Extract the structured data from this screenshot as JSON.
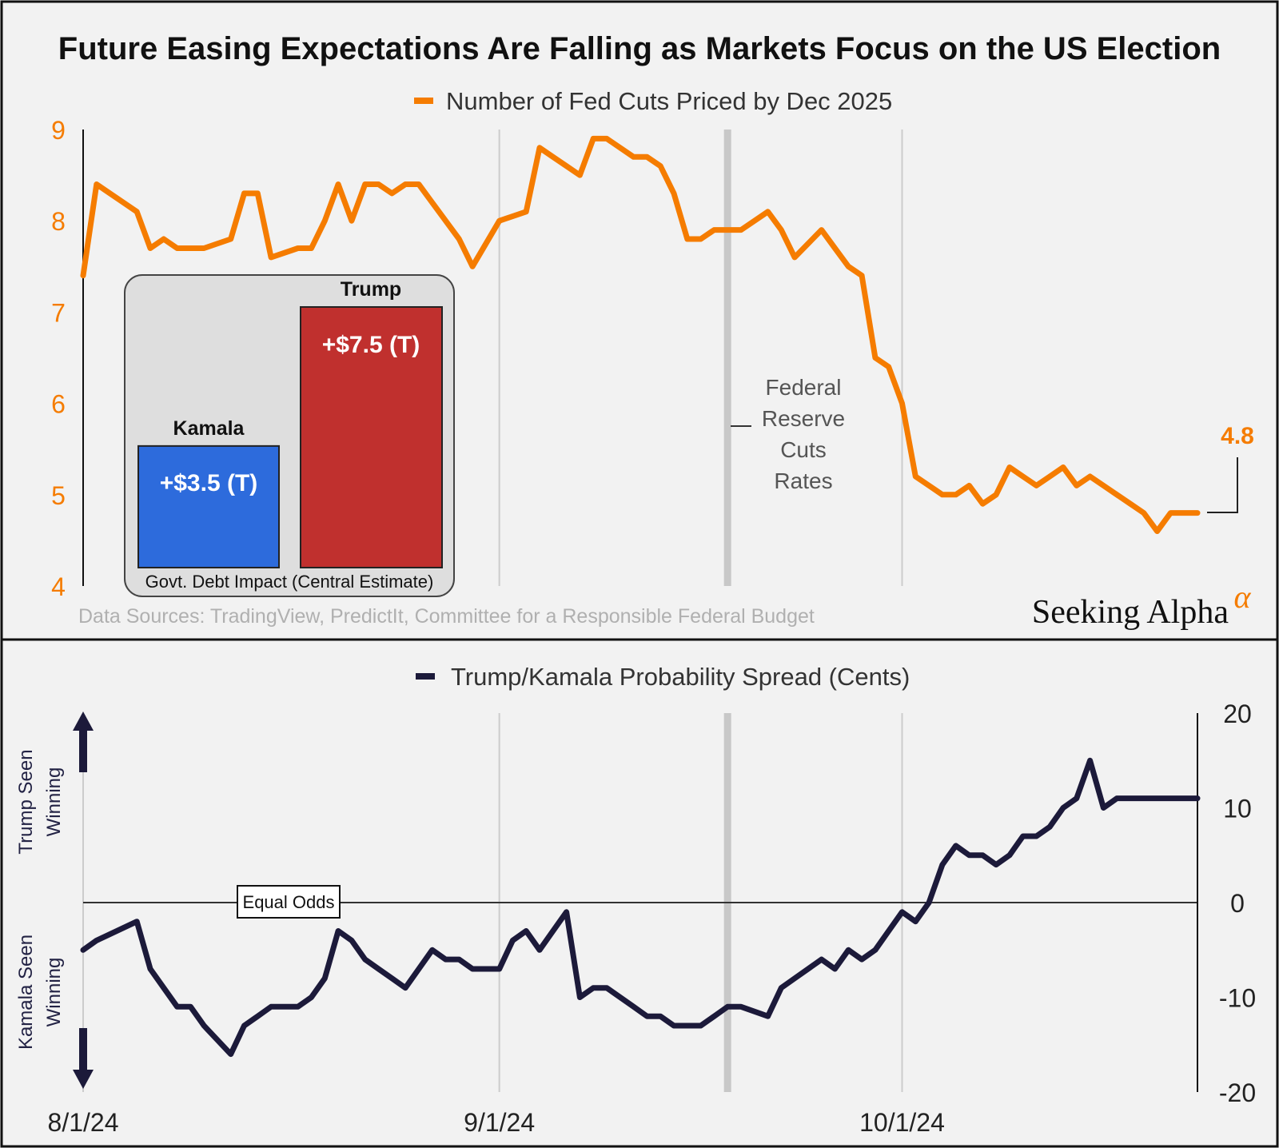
{
  "title": "Future Easing Expectations Are Falling as Markets Focus on the US Election",
  "sources": "Data Sources: TradingView, PredictIt, Committee for a Responsible Federal Budget",
  "brand": {
    "name": "Seeking Alpha",
    "mark": "α"
  },
  "colors": {
    "orange": "#f57c00",
    "navy": "#1c1a3a",
    "kamala": "#2d6bdc",
    "trump": "#c0302e",
    "grid": "#cccccc",
    "fed_band": "#c8c8c8"
  },
  "chart_data": [
    {
      "type": "line",
      "legend": "Number of Fed Cuts Priced by Dec 2025",
      "ylim": [
        4,
        9
      ],
      "yticks": [
        "4",
        "5",
        "6",
        "7",
        "8",
        "9"
      ],
      "xticks": [
        "8/1/24",
        "9/1/24",
        "10/1/24"
      ],
      "last_value_label": "4.8",
      "annotation": [
        "Federal",
        "Reserve",
        "Cuts",
        "Rates"
      ],
      "series": [
        {
          "name": "Number of Fed Cuts Priced by Dec 2025",
          "x": [
            0,
            1,
            4,
            5,
            6,
            7,
            8,
            9,
            11,
            12,
            13,
            14,
            16,
            17,
            18,
            19,
            20,
            21,
            22,
            23,
            24,
            25,
            26,
            27,
            28,
            29,
            31,
            33,
            34,
            35,
            36,
            37,
            38,
            39,
            41,
            42,
            43,
            44,
            45,
            46,
            47,
            48,
            49,
            51,
            52,
            53,
            55,
            56,
            57,
            58,
            59,
            60,
            61,
            62,
            63,
            64,
            65,
            66,
            67,
            68,
            69,
            70,
            71,
            72,
            73,
            74,
            75,
            76,
            77,
            78,
            79,
            80,
            81,
            82,
            83
          ],
          "values": [
            7.4,
            8.4,
            8.1,
            7.7,
            7.8,
            7.7,
            7.7,
            7.7,
            7.8,
            8.3,
            8.3,
            7.6,
            7.7,
            7.7,
            8.0,
            8.4,
            8.0,
            8.4,
            8.4,
            8.3,
            8.4,
            8.4,
            8.2,
            8.0,
            7.8,
            7.5,
            8.0,
            8.1,
            8.8,
            8.7,
            8.6,
            8.5,
            8.9,
            8.9,
            8.7,
            8.7,
            8.6,
            8.3,
            7.8,
            7.8,
            7.9,
            7.9,
            7.9,
            8.1,
            7.9,
            7.6,
            7.9,
            7.7,
            7.5,
            7.4,
            6.5,
            6.4,
            6.0,
            5.2,
            5.1,
            5.0,
            5.0,
            5.1,
            4.9,
            5.0,
            5.3,
            5.2,
            5.1,
            5.2,
            5.3,
            5.1,
            5.2,
            5.1,
            5.0,
            4.9,
            4.8,
            4.6,
            4.8,
            4.8,
            4.8
          ]
        }
      ]
    },
    {
      "type": "bar",
      "title": "Govt. Debt Impact (Central Estimate)",
      "categories": [
        "Kamala",
        "Trump"
      ],
      "values": [
        3.5,
        7.5
      ],
      "value_labels": [
        "+$3.5 (T)",
        "+$7.5 (T)"
      ]
    },
    {
      "type": "line",
      "legend": "Trump/Kamala Probability Spread (Cents)",
      "ylim": [
        -20,
        20
      ],
      "yticks": [
        "-20",
        "-10",
        "0",
        "10",
        "20"
      ],
      "xticks": [
        "8/1/24",
        "9/1/24",
        "10/1/24"
      ],
      "zero_label": "Equal Odds",
      "top_side_label": [
        "Trump Seen",
        "Winning"
      ],
      "bottom_side_label": [
        "Kamala Seen",
        "Winning"
      ],
      "series": [
        {
          "name": "Trump/Kamala Probability Spread (Cents)",
          "x": [
            0,
            1,
            4,
            5,
            6,
            7,
            8,
            9,
            11,
            12,
            13,
            14,
            16,
            17,
            18,
            19,
            20,
            21,
            22,
            23,
            24,
            25,
            26,
            27,
            28,
            29,
            31,
            32,
            33,
            34,
            35,
            36,
            37,
            38,
            39,
            41,
            42,
            43,
            44,
            45,
            46,
            47,
            48,
            49,
            51,
            52,
            53,
            54,
            55,
            56,
            57,
            58,
            59,
            60,
            61,
            62,
            63,
            64,
            65,
            66,
            67,
            68,
            69,
            70,
            71,
            72,
            73,
            74,
            75,
            76,
            77,
            78,
            79,
            80,
            81,
            82,
            83
          ],
          "values": [
            -5,
            -4,
            -2,
            -7,
            -9,
            -11,
            -11,
            -13,
            -16,
            -13,
            -12,
            -11,
            -11,
            -10,
            -8,
            -3,
            -4,
            -6,
            -7,
            -8,
            -9,
            -7,
            -5,
            -6,
            -6,
            -7,
            -7,
            -4,
            -3,
            -5,
            -3,
            -1,
            -10,
            -9,
            -9,
            -11,
            -12,
            -12,
            -13,
            -13,
            -13,
            -12,
            -11,
            -11,
            -12,
            -9,
            -8,
            -7,
            -6,
            -7,
            -5,
            -6,
            -5,
            -3,
            -1,
            -2,
            0,
            4,
            6,
            5,
            5,
            4,
            5,
            7,
            7,
            8,
            10,
            11,
            15,
            10,
            11,
            11,
            11,
            11,
            11,
            11,
            11
          ]
        }
      ]
    }
  ]
}
